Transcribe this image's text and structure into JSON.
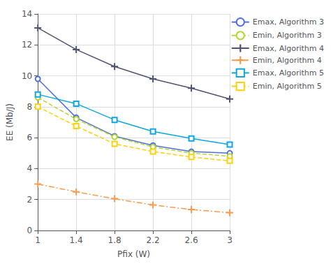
{
  "chart_data": {
    "type": "line",
    "xlabel": "Pfix (W)",
    "ylabel": "EE (Mb/J)",
    "x": [
      1.0,
      1.4,
      1.8,
      2.2,
      2.6,
      3.0
    ],
    "series": [
      {
        "name": "Emax, Algorithm 3",
        "values": [
          9.8,
          7.3,
          6.1,
          5.5,
          5.1,
          5.0
        ],
        "marker": "circle",
        "line_style": "solid"
      },
      {
        "name": "Emin, Algorithm 3",
        "values": [
          8.6,
          7.2,
          6.05,
          5.4,
          5.0,
          4.8
        ],
        "marker": "circle",
        "line_style": "dashed"
      },
      {
        "name": "Emax, Algorithm 4",
        "values": [
          13.1,
          11.7,
          10.6,
          9.8,
          9.2,
          8.5
        ],
        "marker": "plus",
        "line_style": "solid"
      },
      {
        "name": "Emin, Algorithm 4",
        "values": [
          3.0,
          2.5,
          2.05,
          1.65,
          1.35,
          1.15
        ],
        "marker": "plus",
        "line_style": "dashdot"
      },
      {
        "name": "Emax, Algorithm 5",
        "values": [
          8.8,
          8.2,
          7.15,
          6.4,
          5.95,
          5.55
        ],
        "marker": "square",
        "line_style": "solid"
      },
      {
        "name": "Emin, Algorithm 5",
        "values": [
          8.0,
          6.75,
          5.6,
          5.1,
          4.75,
          4.5
        ],
        "marker": "square",
        "line_style": "dashed"
      }
    ],
    "xlim": [
      1,
      3
    ],
    "ylim": [
      0,
      14
    ],
    "xticks": [
      1,
      1.4,
      1.8,
      2.2,
      2.6,
      3
    ],
    "yticks": [
      0,
      2,
      4,
      6,
      8,
      10,
      12,
      14
    ],
    "grid": true,
    "legend": "upper right"
  }
}
